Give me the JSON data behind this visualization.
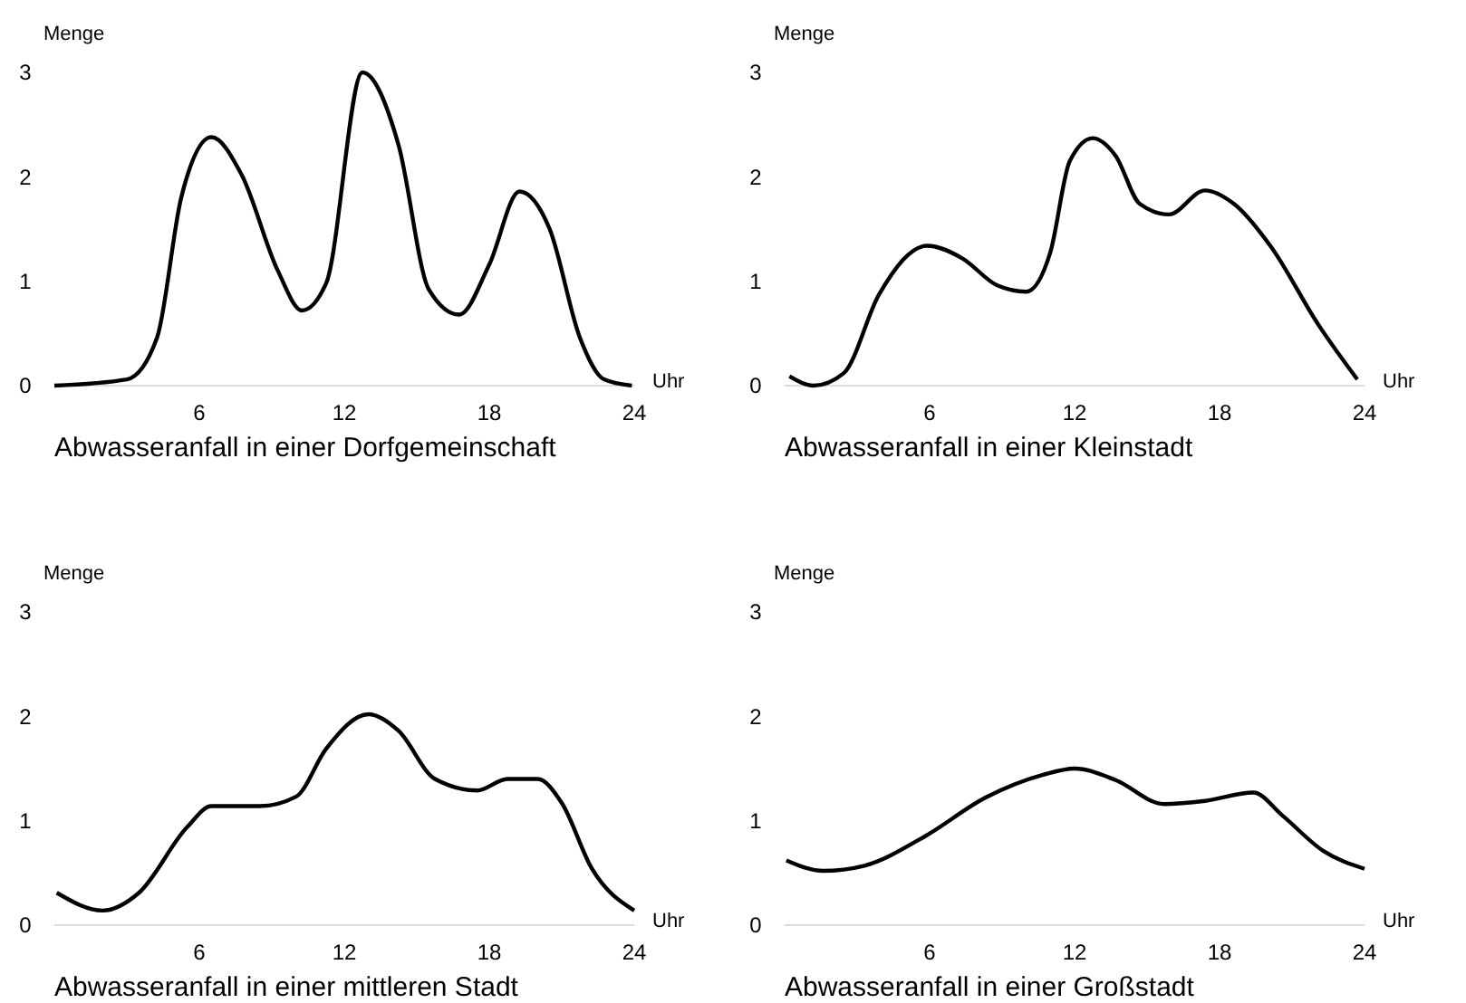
{
  "chart_data": [
    {
      "type": "line",
      "title": "Abwasseranfall in einer Dorfgemeinschaft",
      "xlabel": "Uhr",
      "ylabel": "Menge",
      "xlim": [
        0,
        24
      ],
      "ylim": [
        0,
        3
      ],
      "xticks": [
        6,
        12,
        18,
        24
      ],
      "yticks": [
        0,
        1,
        2,
        3
      ],
      "grid": false,
      "color": "#000000",
      "x": [
        0,
        3,
        4.25,
        5.25,
        6.5,
        7.75,
        9.25,
        10.25,
        11.25,
        12.75,
        14.25,
        15.5,
        16.75,
        18,
        19.25,
        20.5,
        21.75,
        22.75,
        23.9
      ],
      "values": [
        0,
        0.06,
        0.46,
        1.8,
        2.38,
        2.02,
        1.1,
        0.72,
        0.98,
        3.0,
        2.3,
        0.92,
        0.68,
        1.16,
        1.86,
        1.5,
        0.46,
        0.06,
        0
      ]
    },
    {
      "type": "line",
      "title": "Abwasseranfall in einer Kleinstadt",
      "xlabel": "Uhr",
      "ylabel": "Menge",
      "xlim": [
        0,
        24
      ],
      "ylim": [
        0,
        3
      ],
      "xticks": [
        6,
        12,
        18,
        24
      ],
      "yticks": [
        0,
        1,
        2,
        3
      ],
      "grid": false,
      "color": "#000000",
      "x": [
        0.2,
        1.2,
        2.45,
        3.9,
        5.9,
        7.35,
        8.8,
        10,
        11,
        11.8,
        12.75,
        13.7,
        14.7,
        15.9,
        17.4,
        18.6,
        20.1,
        22.1,
        23.7
      ],
      "values": [
        0.09,
        0,
        0.12,
        0.87,
        1.34,
        1.22,
        0.96,
        0.9,
        1.28,
        2.15,
        2.37,
        2.2,
        1.74,
        1.64,
        1.87,
        1.74,
        1.34,
        0.58,
        0.06
      ]
    },
    {
      "type": "line",
      "title": "Abwasseranfall in einer mittleren Stadt",
      "xlabel": "Uhr",
      "ylabel": "Menge",
      "xlim": [
        0,
        24
      ],
      "ylim": [
        0,
        3
      ],
      "xticks": [
        6,
        12,
        18,
        24
      ],
      "yticks": [
        0,
        1,
        2,
        3
      ],
      "grid": false,
      "color": "#000000",
      "x": [
        0.1,
        2,
        3.5,
        5.5,
        6.5,
        8.5,
        10,
        11.25,
        13,
        14.25,
        15.75,
        17.5,
        18.75,
        20,
        21,
        22.25,
        24
      ],
      "values": [
        0.31,
        0.14,
        0.31,
        0.94,
        1.14,
        1.14,
        1.23,
        1.69,
        2.02,
        1.86,
        1.4,
        1.29,
        1.4,
        1.4,
        1.17,
        0.54,
        0.14
      ]
    },
    {
      "type": "line",
      "title": "Abwasseranfall in einer Großstadt",
      "xlabel": "Uhr",
      "ylabel": "Menge",
      "xlim": [
        0,
        24
      ],
      "ylim": [
        0,
        3
      ],
      "xticks": [
        6,
        12,
        18,
        24
      ],
      "yticks": [
        0,
        1,
        2,
        3
      ],
      "grid": false,
      "color": "#000000",
      "x": [
        0.07,
        1.6,
        3.3,
        5.8,
        8.3,
        10.7,
        12,
        13.7,
        15.7,
        17.4,
        19.4,
        20.6,
        22.3,
        24
      ],
      "values": [
        0.62,
        0.52,
        0.57,
        0.85,
        1.22,
        1.44,
        1.5,
        1.39,
        1.16,
        1.19,
        1.27,
        1.05,
        0.71,
        0.54
      ]
    }
  ]
}
